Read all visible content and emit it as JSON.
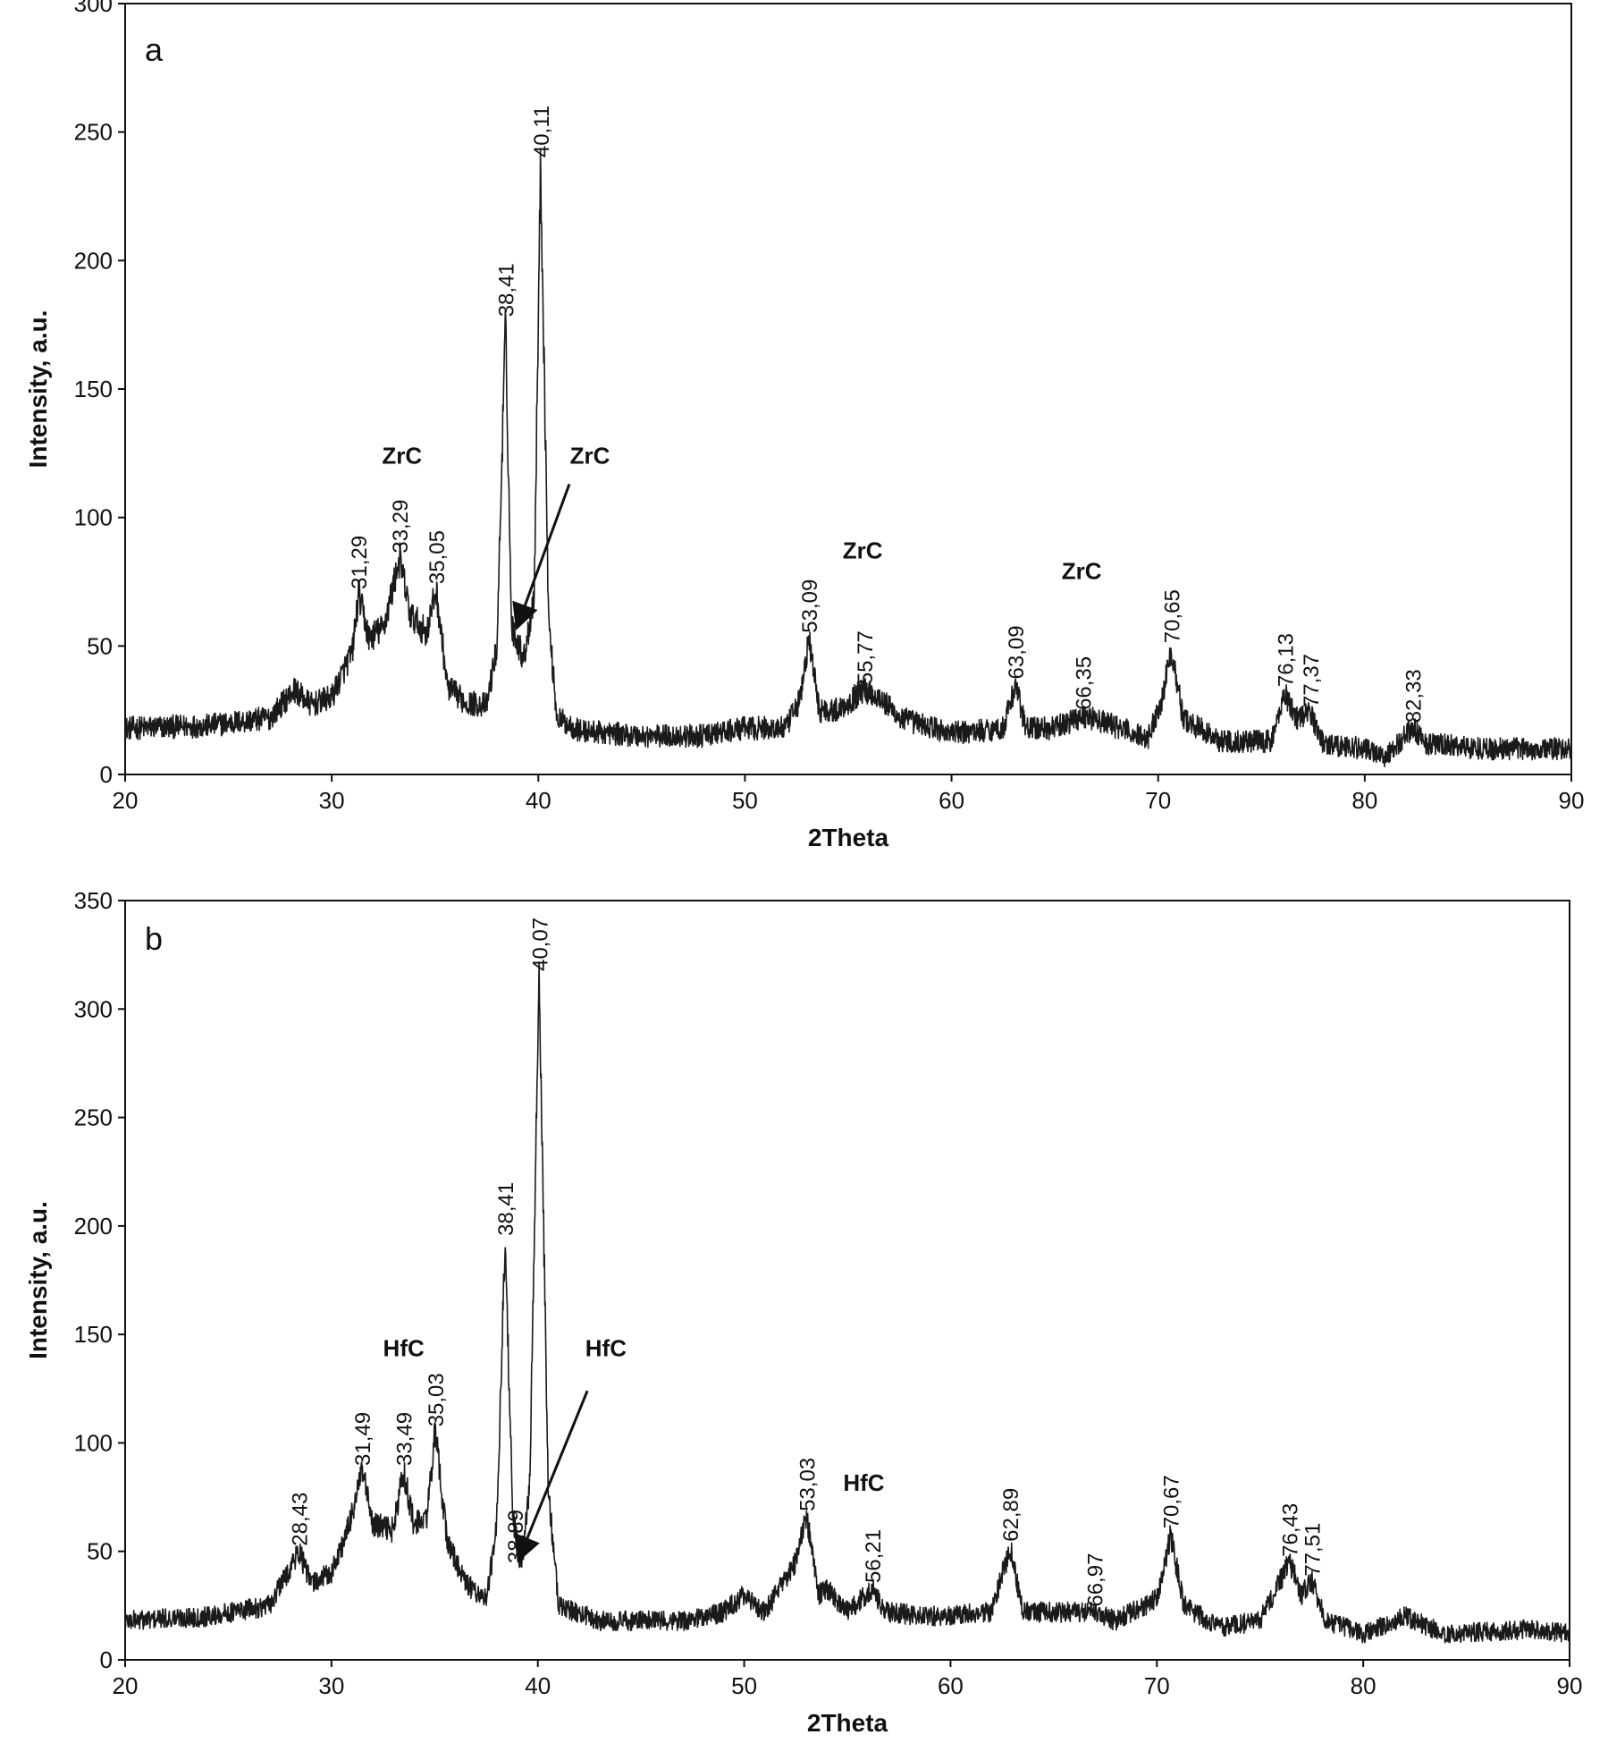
{
  "chart_data": [
    {
      "type": "line",
      "panel_label": "a",
      "xlabel": "2Theta",
      "ylabel": "Intensity, a.u.",
      "xlim": [
        20,
        90
      ],
      "ylim": [
        0,
        300
      ],
      "x_ticks": [
        20,
        30,
        40,
        50,
        60,
        70,
        80,
        90
      ],
      "y_ticks": [
        0,
        50,
        100,
        150,
        200,
        250,
        300
      ],
      "grid": false,
      "legend": "none",
      "line_color": "#1a1a1a",
      "baseline": [
        [
          20,
          18
        ],
        [
          24,
          19
        ],
        [
          27,
          22
        ],
        [
          28.2,
          33
        ],
        [
          29,
          27
        ],
        [
          30,
          30
        ],
        [
          31,
          48
        ],
        [
          31.3,
          70
        ],
        [
          31.8,
          53
        ],
        [
          32.5,
          57
        ],
        [
          33.29,
          84
        ],
        [
          33.8,
          62
        ],
        [
          34.6,
          55
        ],
        [
          35.05,
          72
        ],
        [
          35.6,
          34
        ],
        [
          36.5,
          28
        ],
        [
          37.5,
          27
        ],
        [
          38.0,
          50
        ],
        [
          38.41,
          176
        ],
        [
          38.7,
          58
        ],
        [
          39.3,
          45
        ],
        [
          39.8,
          70
        ],
        [
          40.11,
          238
        ],
        [
          40.5,
          60
        ],
        [
          40.9,
          22
        ],
        [
          42,
          17
        ],
        [
          45,
          15
        ],
        [
          48,
          15
        ],
        [
          50,
          18
        ],
        [
          52,
          18
        ],
        [
          52.7,
          30
        ],
        [
          53.09,
          53
        ],
        [
          53.6,
          25
        ],
        [
          54.5,
          25
        ],
        [
          55.77,
          33
        ],
        [
          56.5,
          30
        ],
        [
          57.5,
          22
        ],
        [
          60,
          16
        ],
        [
          62.5,
          18
        ],
        [
          63.09,
          35
        ],
        [
          63.6,
          18
        ],
        [
          65,
          18
        ],
        [
          66.35,
          23
        ],
        [
          67.5,
          20
        ],
        [
          69.5,
          14
        ],
        [
          70.2,
          30
        ],
        [
          70.65,
          49
        ],
        [
          71.2,
          22
        ],
        [
          73,
          13
        ],
        [
          75.5,
          13
        ],
        [
          76.13,
          32
        ],
        [
          76.7,
          22
        ],
        [
          77.37,
          24
        ],
        [
          78,
          12
        ],
        [
          80,
          10
        ],
        [
          81,
          7
        ],
        [
          82.33,
          18
        ],
        [
          83,
          12
        ],
        [
          86,
          10
        ],
        [
          90,
          10
        ]
      ],
      "peak_labels": [
        {
          "x": 31.29,
          "y": 70,
          "label": "31,29"
        },
        {
          "x": 33.29,
          "y": 84,
          "label": "33,29"
        },
        {
          "x": 35.05,
          "y": 72,
          "label": "35,05"
        },
        {
          "x": 38.41,
          "y": 176,
          "label": "38,41"
        },
        {
          "x": 40.11,
          "y": 238,
          "label": "40,11"
        },
        {
          "x": 53.09,
          "y": 53,
          "label": "53,09"
        },
        {
          "x": 55.77,
          "y": 33,
          "label": "55,77"
        },
        {
          "x": 63.09,
          "y": 35,
          "label": "63,09"
        },
        {
          "x": 66.35,
          "y": 23,
          "label": "66,35"
        },
        {
          "x": 70.65,
          "y": 49,
          "label": "70,65"
        },
        {
          "x": 76.13,
          "y": 32,
          "label": "76,13"
        },
        {
          "x": 77.37,
          "y": 24,
          "label": "77,37"
        },
        {
          "x": 82.33,
          "y": 18,
          "label": "82,33"
        }
      ],
      "phase_labels": [
        {
          "x": 33.4,
          "y": 121,
          "label": "ZrC"
        },
        {
          "x": 42.5,
          "y": 121,
          "label": "ZrC"
        },
        {
          "x": 55.7,
          "y": 84,
          "label": "ZrC"
        },
        {
          "x": 66.3,
          "y": 76,
          "label": "ZrC"
        }
      ],
      "arrow": {
        "from": [
          41.5,
          113
        ],
        "to": [
          39.0,
          58
        ]
      }
    },
    {
      "type": "line",
      "panel_label": "b",
      "xlabel": "2Theta",
      "ylabel": "Intensity, a.u.",
      "xlim": [
        20,
        90
      ],
      "ylim": [
        0,
        350
      ],
      "x_ticks": [
        20,
        30,
        40,
        50,
        60,
        70,
        80,
        90
      ],
      "y_ticks": [
        0,
        50,
        100,
        150,
        200,
        250,
        300,
        350
      ],
      "grid": false,
      "legend": "none",
      "line_color": "#1a1a1a",
      "baseline": [
        [
          20,
          18
        ],
        [
          24,
          20
        ],
        [
          27,
          25
        ],
        [
          28.43,
          50
        ],
        [
          29,
          35
        ],
        [
          30,
          40
        ],
        [
          30.8,
          60
        ],
        [
          31.49,
          87
        ],
        [
          32,
          62
        ],
        [
          33,
          60
        ],
        [
          33.49,
          87
        ],
        [
          34,
          62
        ],
        [
          34.6,
          65
        ],
        [
          35.03,
          105
        ],
        [
          35.6,
          55
        ],
        [
          36.5,
          35
        ],
        [
          37.5,
          28
        ],
        [
          38.0,
          60
        ],
        [
          38.41,
          193
        ],
        [
          38.8,
          65
        ],
        [
          39.2,
          42
        ],
        [
          39.6,
          80
        ],
        [
          40.07,
          315
        ],
        [
          40.5,
          80
        ],
        [
          41,
          25
        ],
        [
          43,
          18
        ],
        [
          47,
          18
        ],
        [
          49,
          22
        ],
        [
          50,
          30
        ],
        [
          51,
          22
        ],
        [
          52.5,
          45
        ],
        [
          53.03,
          66
        ],
        [
          53.6,
          30
        ],
        [
          54,
          33
        ],
        [
          55,
          22
        ],
        [
          56.21,
          33
        ],
        [
          56.8,
          22
        ],
        [
          59,
          20
        ],
        [
          62,
          22
        ],
        [
          62.89,
          52
        ],
        [
          63.5,
          22
        ],
        [
          66.97,
          22
        ],
        [
          68,
          18
        ],
        [
          70,
          28
        ],
        [
          70.67,
          58
        ],
        [
          71.3,
          25
        ],
        [
          73,
          15
        ],
        [
          75,
          18
        ],
        [
          76.43,
          45
        ],
        [
          77.0,
          30
        ],
        [
          77.51,
          36
        ],
        [
          78.2,
          18
        ],
        [
          80,
          12
        ],
        [
          82,
          20
        ],
        [
          84,
          12
        ],
        [
          88,
          14
        ],
        [
          90,
          12
        ]
      ],
      "peak_labels": [
        {
          "x": 28.43,
          "y": 50,
          "label": "28,43"
        },
        {
          "x": 31.49,
          "y": 87,
          "label": "31,49"
        },
        {
          "x": 33.49,
          "y": 87,
          "label": "33,49"
        },
        {
          "x": 35.03,
          "y": 105,
          "label": "35,03"
        },
        {
          "x": 38.41,
          "y": 193,
          "label": "38,41"
        },
        {
          "x": 38.89,
          "y": 42,
          "label": "38,89"
        },
        {
          "x": 40.07,
          "y": 315,
          "label": "40,07"
        },
        {
          "x": 53.03,
          "y": 66,
          "label": "53,03"
        },
        {
          "x": 56.21,
          "y": 33,
          "label": "56,21"
        },
        {
          "x": 62.89,
          "y": 52,
          "label": "62,89"
        },
        {
          "x": 66.97,
          "y": 22,
          "label": "66,97"
        },
        {
          "x": 70.67,
          "y": 58,
          "label": "70,67"
        },
        {
          "x": 76.43,
          "y": 45,
          "label": "76,43"
        },
        {
          "x": 77.51,
          "y": 36,
          "label": "77,51"
        }
      ],
      "phase_labels": [
        {
          "x": 33.5,
          "y": 140,
          "label": "HfC"
        },
        {
          "x": 43.3,
          "y": 140,
          "label": "HfC"
        },
        {
          "x": 55.8,
          "y": 78,
          "label": "HfC"
        }
      ],
      "arrow": {
        "from": [
          42.4,
          124
        ],
        "to": [
          39.1,
          47
        ]
      }
    }
  ]
}
